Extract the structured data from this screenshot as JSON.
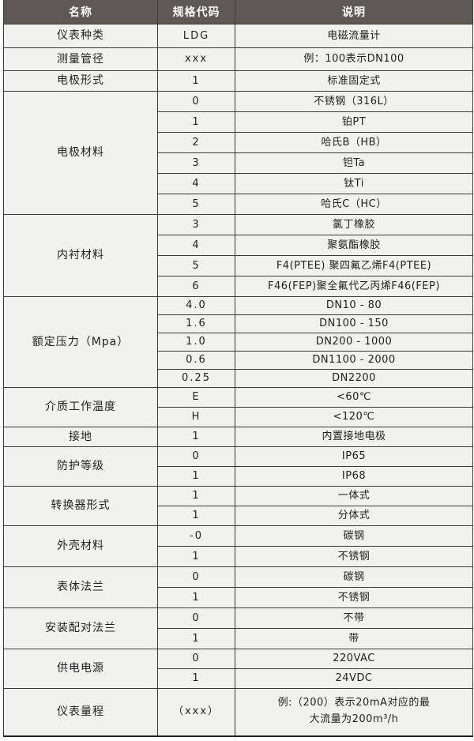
{
  "header": {
    "name": "名称",
    "code": "规格代码",
    "desc": "说明"
  },
  "groups": [
    {
      "name": "仪表种类",
      "rows": [
        {
          "code": "LDG",
          "desc": "电磁流量计"
        }
      ]
    },
    {
      "name": "测量管径",
      "rows": [
        {
          "code": "xxx",
          "desc": "例：100表示DN100"
        }
      ]
    },
    {
      "name": "电极形式",
      "rows": [
        {
          "code": "1",
          "desc": "标准固定式"
        }
      ]
    },
    {
      "name": "电极材料",
      "rows": [
        {
          "code": "0",
          "desc": "不锈钢（316L）"
        },
        {
          "code": "1",
          "desc": "铂PT"
        },
        {
          "code": "2",
          "desc": "哈氏B（HB）"
        },
        {
          "code": "3",
          "desc": "钽Ta"
        },
        {
          "code": "4",
          "desc": "钛Ti"
        },
        {
          "code": "5",
          "desc": "哈氏C（HC）"
        }
      ]
    },
    {
      "name": "内衬材料",
      "rows": [
        {
          "code": "3",
          "desc": "氯丁橡胶"
        },
        {
          "code": "4",
          "desc": "聚氨酯橡胶"
        },
        {
          "code": "5",
          "desc": "F4(PTEE) 聚四氟乙烯F4(PTEE)"
        },
        {
          "code": "6",
          "desc": "F46(FEP)聚全氟代乙丙烯F46(FEP)"
        }
      ]
    },
    {
      "name": "额定压力（Mpa）",
      "rows": [
        {
          "code": "4.0",
          "desc": "DN10 - 80"
        },
        {
          "code": "1.6",
          "desc": "DN100 - 150"
        },
        {
          "code": "1.0",
          "desc": "DN200 - 1000"
        },
        {
          "code": "0.6",
          "desc": "DN1100 - 2000"
        },
        {
          "code": "0.25",
          "desc": "DN2200"
        }
      ]
    },
    {
      "name": "介质工作温度",
      "rows": [
        {
          "code": "E",
          "desc": "<60℃"
        },
        {
          "code": "H",
          "desc": "<120℃"
        }
      ]
    },
    {
      "name": "接地",
      "rows": [
        {
          "code": "1",
          "desc": "内置接地电极"
        }
      ]
    },
    {
      "name": "防护等级",
      "rows": [
        {
          "code": "0",
          "desc": "IP65"
        },
        {
          "code": "1",
          "desc": "IP68"
        }
      ]
    },
    {
      "name": "转换器形式",
      "rows": [
        {
          "code": "1",
          "desc": "一体式"
        },
        {
          "code": "1",
          "desc": "分体式"
        }
      ]
    },
    {
      "name": "外壳材料",
      "rows": [
        {
          "code": "-0",
          "desc": "碳钢"
        },
        {
          "code": "1",
          "desc": "不锈钢"
        }
      ]
    },
    {
      "name": "表体法兰",
      "rows": [
        {
          "code": "0",
          "desc": "碳钢"
        },
        {
          "code": "1",
          "desc": "不锈钢"
        }
      ]
    },
    {
      "name": "安装配对法兰",
      "rows": [
        {
          "code": "0",
          "desc": "不带"
        },
        {
          "code": "1",
          "desc": "带"
        }
      ]
    },
    {
      "name": "供电电源",
      "rows": [
        {
          "code": "0",
          "desc": "220VAC"
        },
        {
          "code": "1",
          "desc": "24VDC"
        }
      ]
    },
    {
      "name": "仪表量程",
      "rows": [
        {
          "code": "（xxx）",
          "desc": "例:（200）表示20mA对应的最大流量为200m³/h"
        }
      ]
    }
  ],
  "colors": {
    "header_bg": "#5e5955",
    "cell_bg": "#f1f1ef",
    "border": "#3a3a3a"
  }
}
